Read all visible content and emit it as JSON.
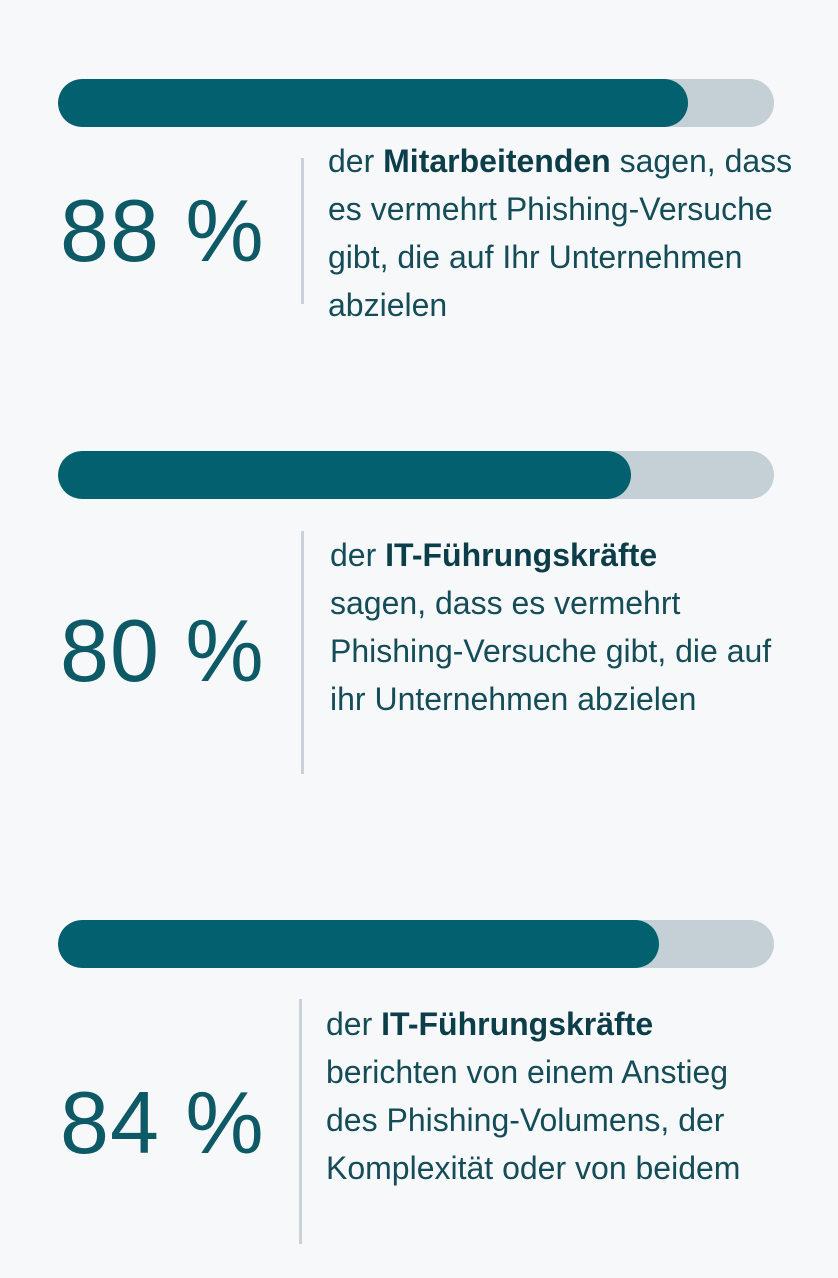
{
  "chart_data": {
    "type": "bar",
    "orientation": "horizontal",
    "ylim": [
      0,
      100
    ],
    "unit": "%",
    "colors": {
      "fill": "#03606e",
      "track": "#c4cfd6",
      "text": "#0f4f5c",
      "background": "#f7f8fa"
    },
    "stats": [
      {
        "value": 88,
        "label": "88 %",
        "pre": "der",
        "bold": "Mitarbeitenden",
        "post": "sagen, dass es vermehrt Phishing-Versuche gibt, die auf Ihr Unternehmen abzielen"
      },
      {
        "value": 80,
        "label": "80 %",
        "pre": "der",
        "bold": "IT-Führungskräfte",
        "post": "sagen, dass es vermehrt Phishing-Versuche gibt, die auf ihr Unternehmen abzielen"
      },
      {
        "value": 84,
        "label": "84 %",
        "pre": "der",
        "bold": "IT-Führungskräfte",
        "post": "berichten von einem Anstieg des Phishing-Volumens, der Komplexität oder von beidem"
      }
    ]
  }
}
